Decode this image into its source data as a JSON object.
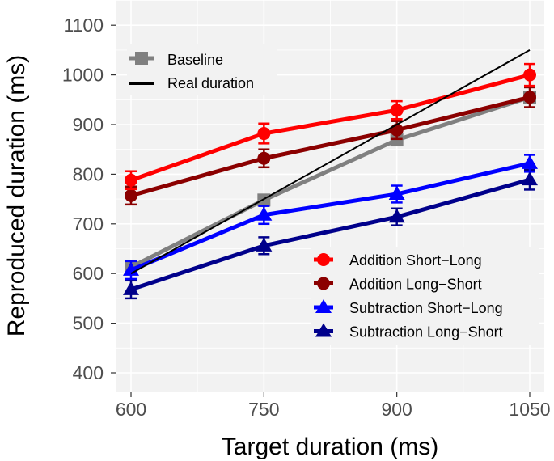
{
  "chart_data": {
    "type": "line",
    "title": "",
    "xlabel": "Target duration (ms)",
    "ylabel": "Reproduced duration (ms)",
    "x": [
      600,
      750,
      900,
      1050
    ],
    "x_ticks": [
      "600",
      "750",
      "900",
      "1050"
    ],
    "y_ticks": [
      "400",
      "500",
      "600",
      "700",
      "800",
      "900",
      "1000",
      "1100"
    ],
    "ylim": [
      380,
      1160
    ],
    "xlim": [
      583,
      1072
    ],
    "grid": true,
    "legends": [
      {
        "placement": "top-left",
        "entries": [
          "Baseline",
          "Real duration"
        ]
      },
      {
        "placement": "bottom-right",
        "entries": [
          "Addition Short−Long",
          "Addition Long−Short",
          "Subtraction Short−Long",
          "Subtraction Long−Short"
        ]
      }
    ],
    "series": [
      {
        "name": "Baseline",
        "color": "#808080",
        "marker": "square",
        "values": [
          613,
          748,
          869,
          955
        ],
        "error": [
          0,
          0,
          0,
          0
        ]
      },
      {
        "name": "Real duration",
        "color": "#000000",
        "marker": "none",
        "values": [
          600,
          750,
          900,
          1050
        ],
        "error": [
          0,
          0,
          0,
          0
        ]
      },
      {
        "name": "Addition Short−Long",
        "color": "#ff0000",
        "marker": "circle",
        "values": [
          788,
          882,
          929,
          1000
        ],
        "error": [
          18,
          20,
          18,
          22
        ]
      },
      {
        "name": "Addition Long−Short",
        "color": "#8b0000",
        "marker": "circle",
        "values": [
          757,
          832,
          889,
          955
        ],
        "error": [
          18,
          18,
          18,
          20
        ]
      },
      {
        "name": "Subtraction Short−Long",
        "color": "#0000ff",
        "marker": "triangle",
        "values": [
          607,
          718,
          760,
          822
        ],
        "error": [
          18,
          18,
          17,
          17
        ]
      },
      {
        "name": "Subtraction Long−Short",
        "color": "#00008b",
        "marker": "triangle",
        "values": [
          568,
          656,
          714,
          789
        ],
        "error": [
          18,
          17,
          17,
          20
        ]
      }
    ]
  }
}
